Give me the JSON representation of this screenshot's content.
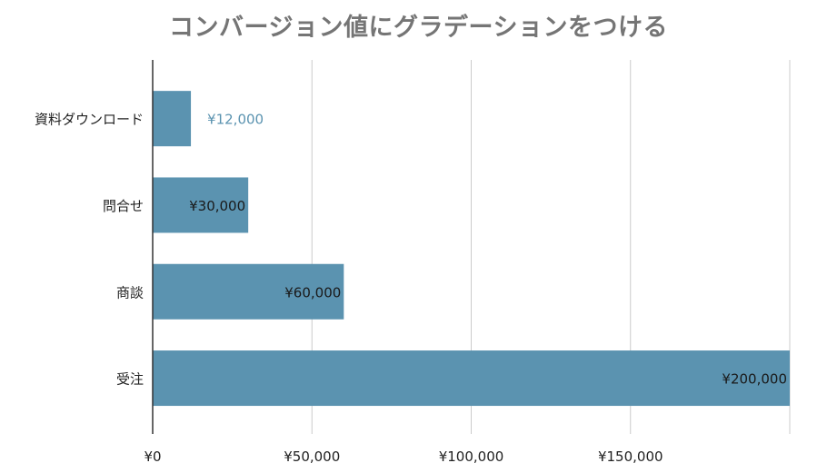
{
  "chart_data": {
    "type": "bar",
    "orientation": "horizontal",
    "title": "コンバージョン値にグラデーションをつける",
    "categories": [
      "資料ダウンロード",
      "問合せ",
      "商談",
      "受注"
    ],
    "values": [
      12000,
      30000,
      60000,
      200000
    ],
    "data_labels": [
      "¥12,000",
      "¥30,000",
      "¥60,000",
      "¥200,000"
    ],
    "x_ticks": [
      0,
      50000,
      100000,
      150000
    ],
    "x_tick_labels": [
      "¥0",
      "¥50,000",
      "¥100,000",
      "¥150,000"
    ],
    "xlim": [
      0,
      200000
    ],
    "xlabel": "",
    "ylabel": "",
    "grid": true,
    "legend": "none",
    "bar_color": "#5b93b0",
    "outside_label_color": "#5b93b0",
    "inside_label_color": "#1a1a1a",
    "grid_color": "#cccccc",
    "axis_color": "#333333",
    "title_color": "#757575"
  }
}
